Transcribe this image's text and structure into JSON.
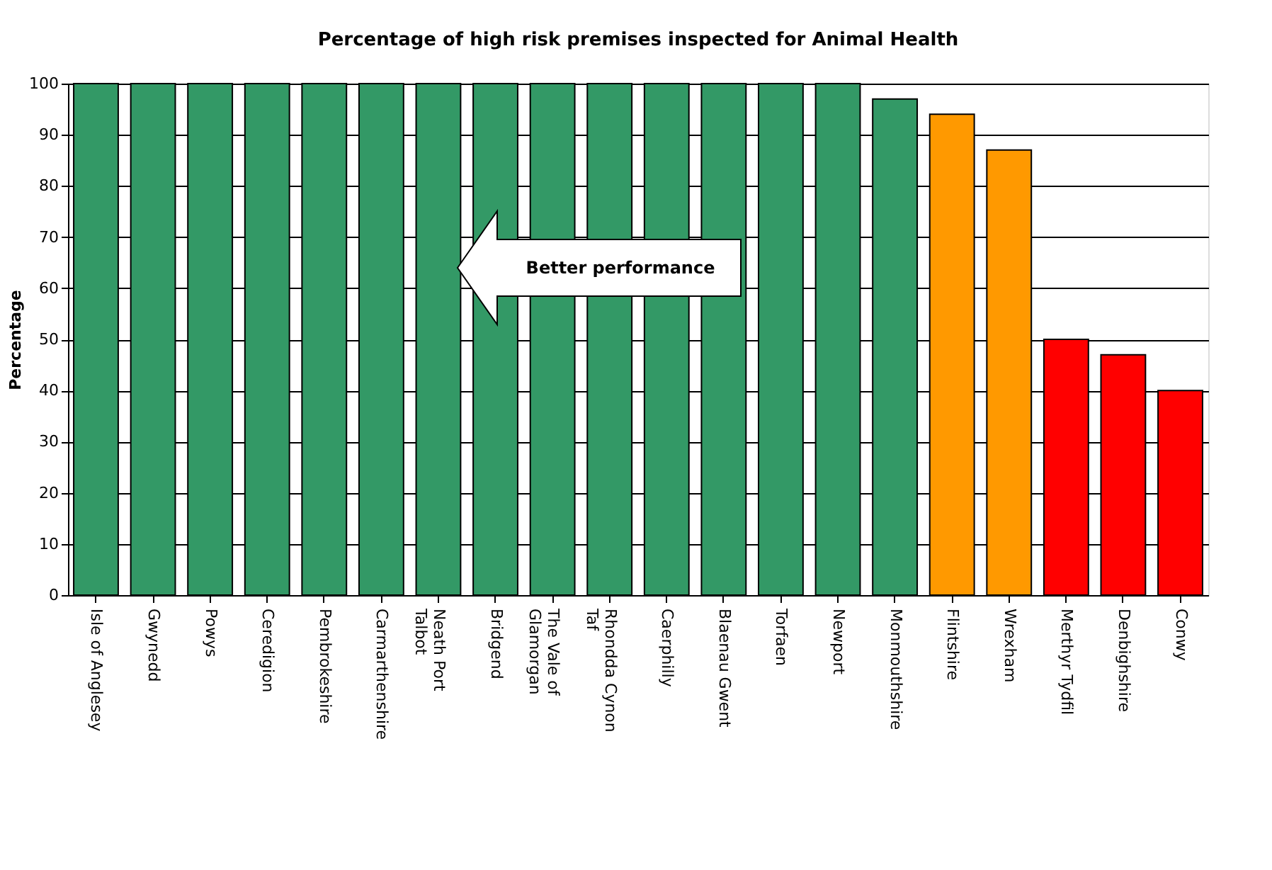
{
  "chart_data": {
    "type": "bar",
    "title": "Percentage of high risk premises inspected for Animal Health",
    "ylabel": "Percentage",
    "categories": [
      "Isle of Anglesey",
      "Gwynedd",
      "Powys",
      "Ceredigion",
      "Pembrokeshire",
      "Carmarthenshire",
      "Neath Port\nTalbot",
      "Bridgend",
      "The Vale of\nGlamorgan",
      "Rhondda Cynon\nTaf",
      "Caerphilly",
      "Blaenau Gwent",
      "Torfaen",
      "Newport",
      "Monmouthshire",
      "Flintshire",
      "Wrexham",
      "Merthyr Tydfil",
      "Denbighshire",
      "Conwy"
    ],
    "values": [
      100,
      100,
      100,
      100,
      100,
      100,
      100,
      100,
      100,
      100,
      100,
      100,
      100,
      100,
      97,
      94,
      87,
      50,
      47,
      40
    ],
    "colors": [
      "#339966",
      "#339966",
      "#339966",
      "#339966",
      "#339966",
      "#339966",
      "#339966",
      "#339966",
      "#339966",
      "#339966",
      "#339966",
      "#339966",
      "#339966",
      "#339966",
      "#339966",
      "#ff9900",
      "#ff9900",
      "#ff0000",
      "#ff0000",
      "#ff0000"
    ],
    "ylim": [
      0,
      100
    ],
    "yticks": [
      0,
      10,
      20,
      30,
      40,
      50,
      60,
      70,
      80,
      90,
      100
    ],
    "grid": "y",
    "annotations": [
      "Better performance"
    ]
  }
}
